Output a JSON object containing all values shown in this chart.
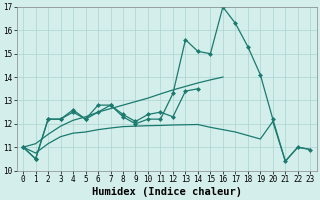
{
  "xlabel": "Humidex (Indice chaleur)",
  "x": [
    0,
    1,
    2,
    3,
    4,
    5,
    6,
    7,
    8,
    9,
    10,
    11,
    12,
    13,
    14,
    15,
    16,
    17,
    18,
    19,
    20,
    21,
    22,
    23
  ],
  "line1": [
    11.0,
    10.5,
    12.2,
    12.2,
    12.5,
    12.2,
    12.8,
    12.8,
    12.3,
    12.0,
    12.2,
    12.2,
    13.3,
    15.6,
    15.1,
    15.0,
    17.0,
    16.3,
    15.3,
    14.1,
    12.2,
    10.4,
    11.0,
    10.9
  ],
  "line2": [
    11.0,
    10.5,
    12.2,
    12.2,
    12.6,
    12.2,
    12.5,
    12.8,
    12.4,
    12.1,
    12.4,
    12.5,
    12.3,
    13.4,
    13.5,
    null,
    null,
    null,
    null,
    null,
    null,
    null,
    null,
    null
  ],
  "line3": [
    null,
    null,
    null,
    null,
    null,
    null,
    null,
    null,
    null,
    null,
    null,
    null,
    null,
    null,
    null,
    null,
    null,
    null,
    null,
    14.05,
    null,
    null,
    null,
    null
  ],
  "line4_smooth_low": [
    11.0,
    10.75,
    11.15,
    11.45,
    11.6,
    11.65,
    11.75,
    11.82,
    11.88,
    11.9,
    11.92,
    11.93,
    11.95,
    11.96,
    11.97,
    11.85,
    11.75,
    11.65,
    11.5,
    11.35,
    12.1,
    10.4,
    11.0,
    10.9
  ],
  "line5_smooth_up": [
    11.0,
    11.15,
    11.55,
    11.9,
    12.15,
    12.3,
    12.5,
    12.65,
    12.8,
    12.95,
    13.1,
    13.28,
    13.45,
    13.6,
    13.75,
    13.88,
    14.0,
    null,
    null,
    null,
    null,
    null,
    null,
    null
  ],
  "line6_smooth_mid": [
    null,
    null,
    null,
    null,
    null,
    null,
    null,
    null,
    null,
    null,
    null,
    null,
    null,
    null,
    null,
    null,
    null,
    null,
    null,
    null,
    null,
    null,
    null,
    null
  ],
  "color": "#1a7a6e",
  "bg_color": "#d4eeeb",
  "grid_color": "#aad4d0",
  "ylim": [
    10,
    17
  ],
  "xlim": [
    -0.5,
    23.5
  ],
  "yticks": [
    10,
    11,
    12,
    13,
    14,
    15,
    16,
    17
  ],
  "xticks": [
    0,
    1,
    2,
    3,
    4,
    5,
    6,
    7,
    8,
    9,
    10,
    11,
    12,
    13,
    14,
    15,
    16,
    17,
    18,
    19,
    20,
    21,
    22,
    23
  ],
  "tick_fontsize": 5.5,
  "xlabel_fontsize": 7.5,
  "linewidth": 0.9,
  "markersize": 2.5
}
